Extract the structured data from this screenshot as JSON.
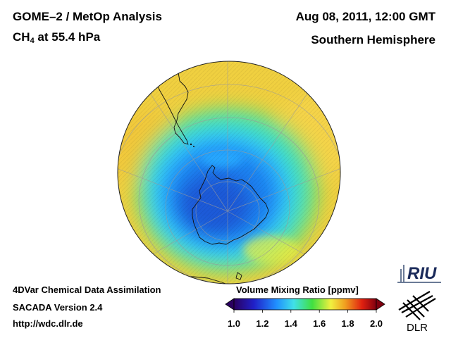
{
  "header": {
    "title": "GOME–2 / MetOp Analysis",
    "species_prefix": "CH",
    "species_subscript": "4",
    "species_suffix": " at 55.4 hPa",
    "date": "Aug 08, 2011, 12:00 GMT",
    "hemisphere": "Southern Hemisphere"
  },
  "footer": {
    "line1": "4DVar Chemical Data Assimilation",
    "line2": "SACADA Version 2.4",
    "line3": "http://wdc.dlr.de"
  },
  "colorbar": {
    "title": "Volume Mixing Ratio [ppmv]",
    "ticks": [
      "1.0",
      "1.2",
      "1.4",
      "1.6",
      "1.8",
      "2.0"
    ],
    "min": 1.0,
    "max": 2.0,
    "colors": [
      "#2a0060",
      "#2020c8",
      "#2090ff",
      "#40e0e8",
      "#40e040",
      "#f0f040",
      "#f0a020",
      "#e02010",
      "#800010"
    ]
  },
  "logos": {
    "riu": "RIU",
    "dlr": "DLR"
  }
}
